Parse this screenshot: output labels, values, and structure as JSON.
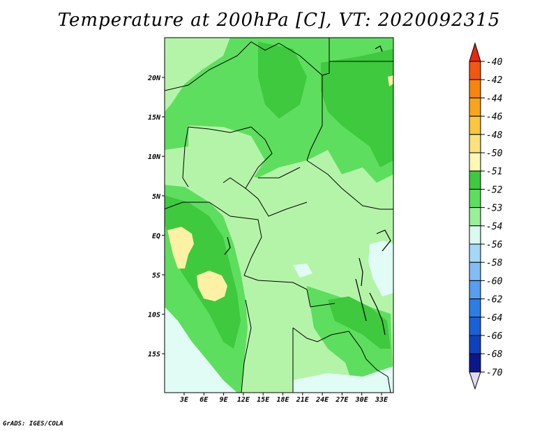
{
  "title": "Temperature at 200hPa [C], VT: 2020092315",
  "credit": "GrADS: IGES/COLA",
  "map": {
    "lon_ticks": [
      "3E",
      "6E",
      "9E",
      "12E",
      "15E",
      "18E",
      "21E",
      "24E",
      "27E",
      "30E",
      "33E"
    ],
    "lat_ticks": [
      "20N",
      "15N",
      "10N",
      "5N",
      "EQ",
      "5S",
      "10S",
      "15S"
    ]
  },
  "colorbar": {
    "labels": [
      "-40",
      "-42",
      "-44",
      "-46",
      "-48",
      "-50",
      "-51",
      "-52",
      "-53",
      "-54",
      "-56",
      "-58",
      "-60",
      "-62",
      "-64",
      "-66",
      "-68",
      "-70"
    ],
    "colors": [
      "#e8270f",
      "#f25712",
      "#f7850e",
      "#f7a51a",
      "#fbc63c",
      "#fde17c",
      "#fdf8b4",
      "#3ec93e",
      "#5ede5e",
      "#99f099",
      "#dafaf0",
      "#a5d7f7",
      "#82bdf5",
      "#559ef0",
      "#2c7ee5",
      "#1961d8",
      "#0e42bc",
      "#0a188c",
      "#ded9f6"
    ],
    "colors_note": null
  },
  "palette": {
    "tan": "#fdf1a5",
    "dark_green": "#3ec93e",
    "mid_green": "#5ede5e",
    "light_green": "#b4f4a8",
    "pale_cyan": "#e1fcf4"
  }
}
